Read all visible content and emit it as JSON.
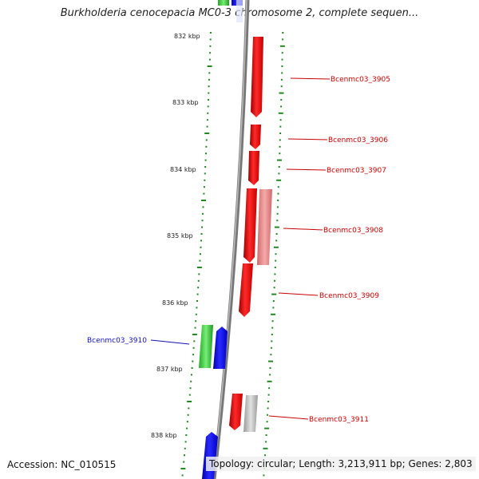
{
  "title": "Burkholderia cenocepacia MC0-3 chromosome 2, complete sequen...",
  "ticks": [
    "832 kbp",
    "833 kbp",
    "834 kbp",
    "835 kbp",
    "836 kbp",
    "837 kbp",
    "838 kbp"
  ],
  "genes": [
    {
      "label": "Bcenmc03_3905",
      "strand": "forward"
    },
    {
      "label": "Bcenmc03_3906",
      "strand": "forward"
    },
    {
      "label": "Bcenmc03_3907",
      "strand": "forward"
    },
    {
      "label": "Bcenmc03_3908",
      "strand": "forward"
    },
    {
      "label": "Bcenmc03_3909",
      "strand": "forward"
    },
    {
      "label": "Bcenmc03_3910",
      "strand": "reverse"
    },
    {
      "label": "Bcenmc03_3911",
      "strand": "forward"
    }
  ],
  "colors": {
    "forward_gene": "#ee0000",
    "reverse_gene": "#0000ee",
    "green_feature": "#33cc33",
    "pink_feature": "#e87a7a",
    "gray_feature": "#bbbbbb",
    "backbone": "#888888",
    "gc_dots": "#228822"
  },
  "footer": {
    "accession": "Accession: NC_010515",
    "summary": "Topology: circular; Length: 3,213,911 bp; Genes: 2,803"
  }
}
